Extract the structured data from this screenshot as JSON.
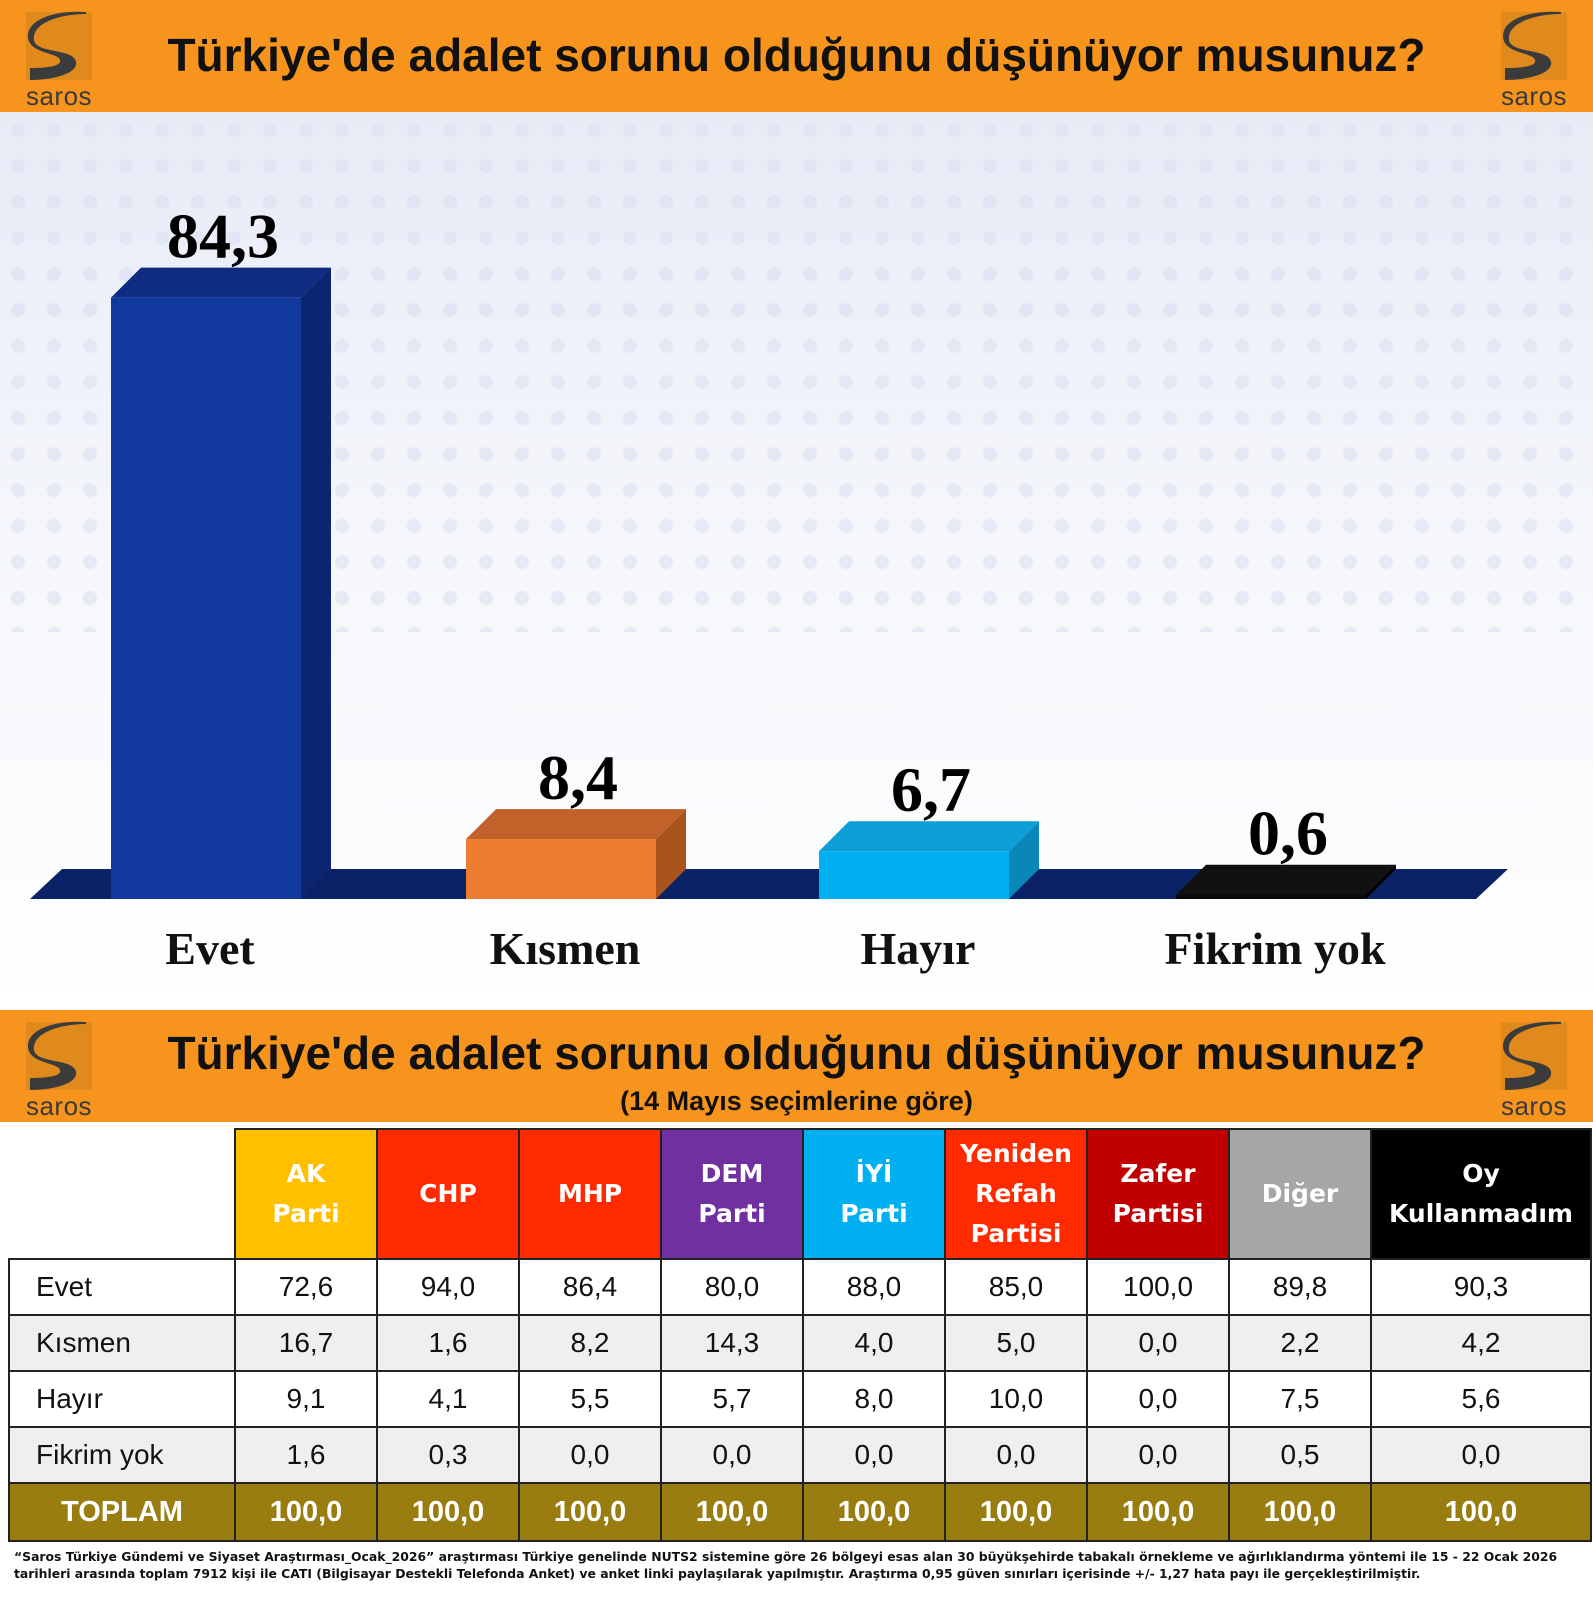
{
  "brand": {
    "logo_text": "saros"
  },
  "banner_top": {
    "title": "Türkiye'de adalet sorunu olduğunu düşünüyor musunuz?"
  },
  "banner_mid": {
    "title": "Türkiye'de adalet sorunu olduğunu düşünüyor musunuz?",
    "subtitle": "(14 Mayıs seçimlerine göre)"
  },
  "chart_data": {
    "type": "bar",
    "title": "Türkiye'de adalet sorunu olduğunu düşünüyor musunuz?",
    "categories": [
      "Evet",
      "Kısmen",
      "Hayır",
      "Fikrim yok"
    ],
    "values": [
      84.3,
      8.4,
      6.7,
      0.6
    ],
    "value_labels": [
      "84,3",
      "8,4",
      "6,7",
      "0,6"
    ],
    "colors": [
      "#123a9e",
      "#ed7d31",
      "#00b0f0",
      "#0a0a0a"
    ],
    "side_colors": [
      "#0b2571",
      "#a9531d",
      "#0a86b8",
      "#000000"
    ],
    "top_colors": [
      "#0d2c82",
      "#c0622a",
      "#0c9fd6",
      "#111111"
    ],
    "xlabel": "",
    "ylabel": "",
    "ylim": [
      0,
      90
    ],
    "grid": false,
    "legend": "none",
    "style": "3d"
  },
  "table": {
    "columns": [
      {
        "label": "AK\nParti",
        "color": "#ffc000"
      },
      {
        "label": "CHP",
        "color": "#ff2a00"
      },
      {
        "label": "MHP",
        "color": "#ff2a00"
      },
      {
        "label": "DEM\nParti",
        "color": "#7030a0"
      },
      {
        "label": "İYİ\nParti",
        "color": "#00b0f0"
      },
      {
        "label": "Yeniden\nRefah\nPartisi",
        "color": "#ff2a00"
      },
      {
        "label": "Zafer\nPartisi",
        "color": "#c00000"
      },
      {
        "label": "Diğer",
        "color": "#a6a6a6"
      },
      {
        "label": "Oy\nKullanmadım",
        "color": "#000000"
      }
    ],
    "rows": [
      {
        "label": "Evet",
        "values": [
          "72,6",
          "94,0",
          "86,4",
          "80,0",
          "88,0",
          "85,0",
          "100,0",
          "89,8",
          "90,3"
        ]
      },
      {
        "label": "Kısmen",
        "values": [
          "16,7",
          "1,6",
          "8,2",
          "14,3",
          "4,0",
          "5,0",
          "0,0",
          "2,2",
          "4,2"
        ]
      },
      {
        "label": "Hayır",
        "values": [
          "9,1",
          "4,1",
          "5,5",
          "5,7",
          "8,0",
          "10,0",
          "0,0",
          "7,5",
          "5,6"
        ]
      },
      {
        "label": "Fikrim yok",
        "values": [
          "1,6",
          "0,3",
          "0,0",
          "0,0",
          "0,0",
          "0,0",
          "0,0",
          "0,5",
          "0,0"
        ]
      }
    ],
    "total": {
      "label": "TOPLAM",
      "values": [
        "100,0",
        "100,0",
        "100,0",
        "100,0",
        "100,0",
        "100,0",
        "100,0",
        "100,0",
        "100,0"
      ]
    }
  },
  "footnote": "“Saros Türkiye Gündemi ve Siyaset Araştırması_Ocak_2026” araştırması Türkiye genelinde NUTS2 sistemine göre 26 bölgeyi esas alan 30 büyükşehirde tabakalı örnekleme ve ağırlıklandırma yöntemi ile 15 - 22 Ocak 2026 tarihleri arasında toplam 7912 kişi ile CATI (Bilgisayar Destekli Telefonda Anket) ve anket linki paylaşılarak yapılmıştır. Araştırma 0,95 güven sınırları içerisinde +/- 1,27 hata payı ile gerçekleştirilmiştir."
}
